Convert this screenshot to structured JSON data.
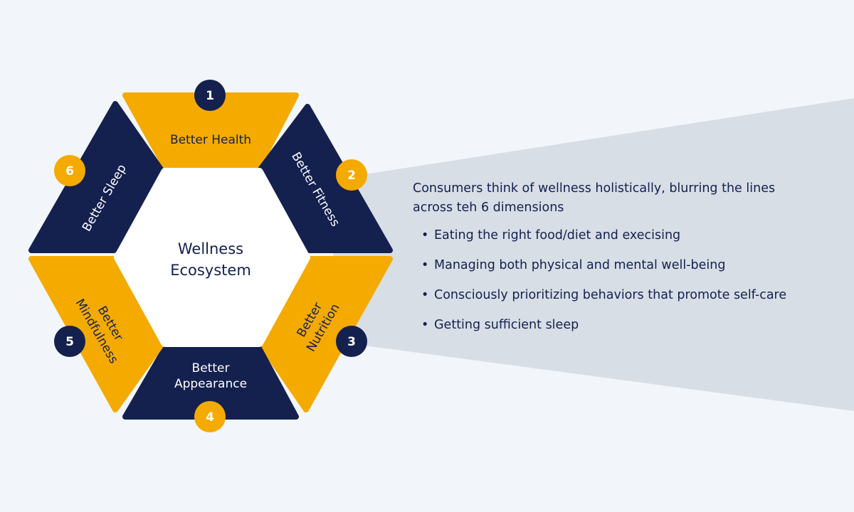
{
  "colors": {
    "background": "#F2F6FA",
    "navy": "#14204E",
    "amber": "#F5AA00",
    "callout": "#D8DEE6",
    "white": "#FFFFFF"
  },
  "diagram": {
    "center_title_line1": "Wellness",
    "center_title_line2": "Ecosystem",
    "segments": [
      {
        "number": "1",
        "color": "amber",
        "label_lines": [
          "Better Health"
        ]
      },
      {
        "number": "2",
        "color": "navy",
        "label_lines": [
          "Better Fitness"
        ]
      },
      {
        "number": "3",
        "color": "amber",
        "label_lines": [
          "Better",
          "Nutrition"
        ]
      },
      {
        "number": "4",
        "color": "navy",
        "label_lines": [
          "Better",
          "Appearance"
        ]
      },
      {
        "number": "5",
        "color": "amber",
        "label_lines": [
          "Better",
          "Mindfulness"
        ]
      },
      {
        "number": "6",
        "color": "navy",
        "label_lines": [
          "Better Sleep"
        ]
      }
    ]
  },
  "panel": {
    "headline": "Consumers think of wellness holistically, blurring the lines across teh 6 dimensions",
    "bullet_glyph": "•",
    "bullets": [
      "Eating the right food/diet and execising",
      "Managing both physical and mental well-being",
      "Consciously prioritizing behaviors that promote self-care",
      "Getting sufficient sleep"
    ]
  }
}
